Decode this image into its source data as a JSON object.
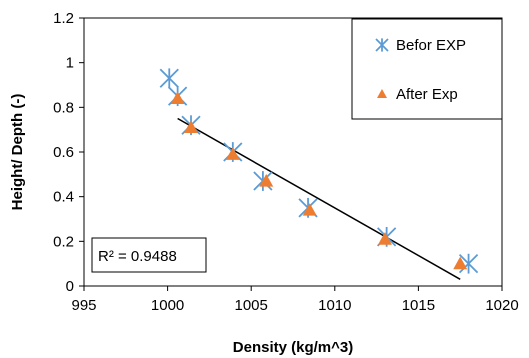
{
  "chart_data": {
    "type": "scatter",
    "xlabel": "Density (kg/m^3)",
    "ylabel": "Height/ Depth (-)",
    "xlim": [
      995,
      1020
    ],
    "ylim": [
      0,
      1.2
    ],
    "x_ticks": [
      "995",
      "1000",
      "1005",
      "1010",
      "1015",
      "1020"
    ],
    "y_ticks": [
      "0",
      "0.2",
      "0.4",
      "0.6",
      "0.8",
      "1",
      "1.2"
    ],
    "grid": false,
    "legend_position": "top-right",
    "series": [
      {
        "name": "Befor EXP",
        "marker": "asterisk",
        "color": "#5B9BD5",
        "x": [
          1000.1,
          1000.6,
          1001.4,
          1003.9,
          1005.7,
          1008.4,
          1013.1,
          1018.0
        ],
        "y": [
          0.93,
          0.85,
          0.72,
          0.6,
          0.47,
          0.35,
          0.22,
          0.1
        ]
      },
      {
        "name": "After Exp",
        "marker": "triangle",
        "color": "#ED7D31",
        "x": [
          1000.6,
          1001.4,
          1003.9,
          1005.9,
          1008.5,
          1013.0,
          1017.5
        ],
        "y": [
          0.84,
          0.71,
          0.59,
          0.47,
          0.34,
          0.21,
          0.1
        ]
      }
    ],
    "trendline": {
      "x": [
        1000.6,
        1017.5
      ],
      "y": [
        0.75,
        0.03
      ],
      "color": "#000000"
    },
    "annotation": "R² = 0.9488"
  }
}
